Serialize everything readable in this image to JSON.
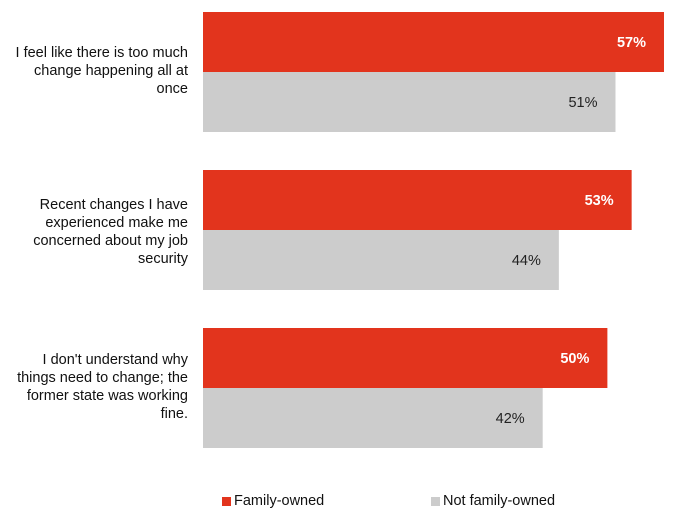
{
  "chart_data": {
    "type": "bar",
    "orientation": "horizontal",
    "categories": [
      "I feel like there is too much change happening all at once",
      "Recent changes I have experienced make me concerned about my job security",
      "I don't understand why things need to change; the former state was working fine."
    ],
    "series": [
      {
        "name": "Family-owned",
        "color": "#e2341d",
        "values": [
          57,
          53,
          50
        ],
        "labels": [
          "57%",
          "53%",
          "50%"
        ]
      },
      {
        "name": "Not family-owned",
        "color": "#cccccc",
        "values": [
          51,
          44,
          42
        ],
        "labels": [
          "51%",
          "44%",
          "42%"
        ]
      }
    ],
    "xlim": [
      0,
      57
    ],
    "grid": false,
    "legend_position": "bottom"
  }
}
